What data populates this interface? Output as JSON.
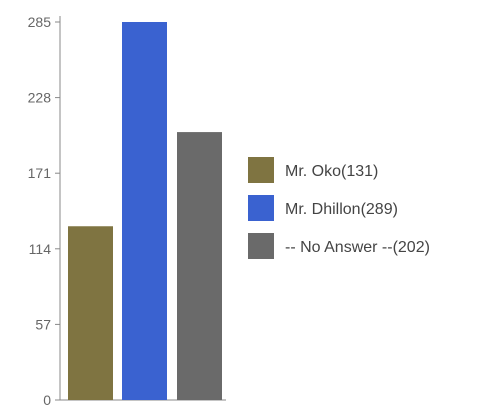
{
  "chart_data": {
    "type": "bar",
    "title": "",
    "xlabel": "",
    "ylabel": "",
    "ylim": [
      0,
      285
    ],
    "y_ticks": [
      "0",
      "57",
      "114",
      "171",
      "228",
      "285"
    ],
    "legend_position": "right",
    "grid": false,
    "categories": [
      "Mr. Oko",
      "Mr. Dhillon",
      "-- No Answer --"
    ],
    "values": [
      131,
      289,
      202
    ],
    "colors": [
      "#7f7441",
      "#3a62d0",
      "#6a6a6a"
    ],
    "legend": [
      "Mr. Oko(131)",
      "Mr. Dhillon(289)",
      "-- No Answer --(202)"
    ]
  }
}
